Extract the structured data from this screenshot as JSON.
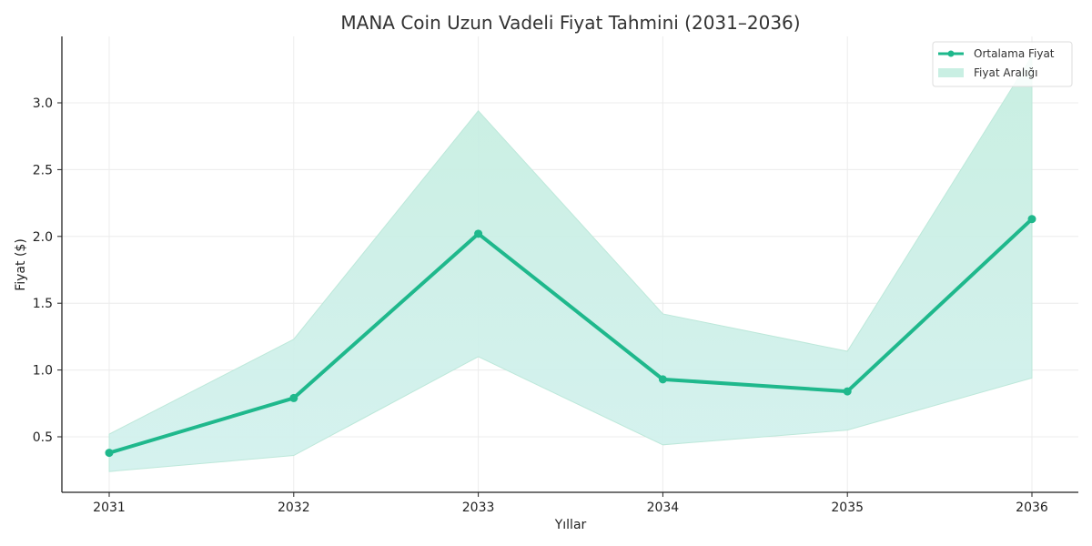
{
  "chart_data": {
    "type": "line",
    "title": "MANA Coin Uzun Vadeli Fiyat Tahmini (2031–2036)",
    "xlabel": "Yıllar",
    "ylabel": "Fiyat ($)",
    "categories": [
      "2031",
      "2032",
      "2033",
      "2034",
      "2035",
      "2036"
    ],
    "series": [
      {
        "name": "Ortalama Fiyat",
        "type": "line",
        "values": [
          0.38,
          0.79,
          2.02,
          0.93,
          0.84,
          2.13
        ]
      },
      {
        "name": "Fiyat Aralığı",
        "type": "area_band",
        "lower": [
          0.24,
          0.36,
          1.1,
          0.44,
          0.55,
          0.94
        ],
        "upper": [
          0.52,
          1.23,
          2.94,
          1.42,
          1.14,
          3.35
        ]
      }
    ],
    "yticks": [
      "0.5",
      "1.0",
      "1.5",
      "2.0",
      "2.5",
      "3.0"
    ],
    "ylim": [
      0.08,
      3.48
    ],
    "grid": true,
    "legend_position": "upper right",
    "colors": {
      "line": "#1fb88c",
      "band": "#b9ebdc"
    }
  },
  "legend": {
    "items": [
      {
        "label": "Ortalama Fiyat"
      },
      {
        "label": "Fiyat Aralığı"
      }
    ]
  }
}
